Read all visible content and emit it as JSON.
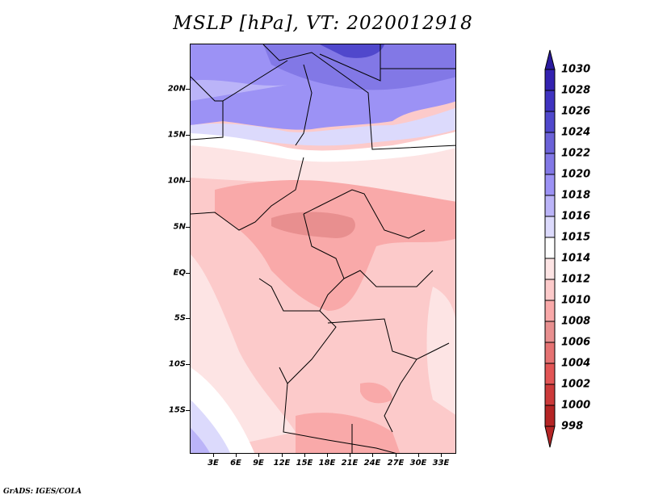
{
  "title": "MSLP [hPa], VT: 2020012918",
  "credit": "GrADS: IGES/COLA",
  "map": {
    "region": "Central/West Africa",
    "lon_range": [
      0,
      35
    ],
    "lat_range": [
      -20,
      24.5
    ],
    "y_axis_labels": [
      "20N",
      "15N",
      "10N",
      "5N",
      "EQ",
      "5S",
      "10S",
      "15S"
    ],
    "y_axis_values": [
      20,
      15,
      10,
      5,
      0,
      -5,
      -10,
      -15
    ],
    "x_axis_labels": [
      "3E",
      "6E",
      "9E",
      "12E",
      "15E",
      "18E",
      "21E",
      "24E",
      "27E",
      "30E",
      "33E"
    ],
    "x_axis_values": [
      3,
      6,
      9,
      12,
      15,
      18,
      21,
      24,
      27,
      30,
      33
    ]
  },
  "colorbar": {
    "labels": [
      "1030",
      "1028",
      "1026",
      "1024",
      "1022",
      "1020",
      "1018",
      "1016",
      "1015",
      "1014",
      "1012",
      "1010",
      "1008",
      "1006",
      "1004",
      "1002",
      "1000",
      "998"
    ],
    "colors": [
      "#2a1a9e",
      "#3322b0",
      "#3f33c0",
      "#5048cc",
      "#6b62d8",
      "#8278e6",
      "#9c92f5",
      "#bbb4f8",
      "#dcdafc",
      "#ffffff",
      "#fde4e4",
      "#fccaca",
      "#f9a9a9",
      "#e88f8f",
      "#e57272",
      "#e25555",
      "#cc3a3a",
      "#b52525",
      "#9e1a1a"
    ],
    "top_arrow_color": "#2a1a9e",
    "bottom_arrow_color": "#b52525"
  }
}
